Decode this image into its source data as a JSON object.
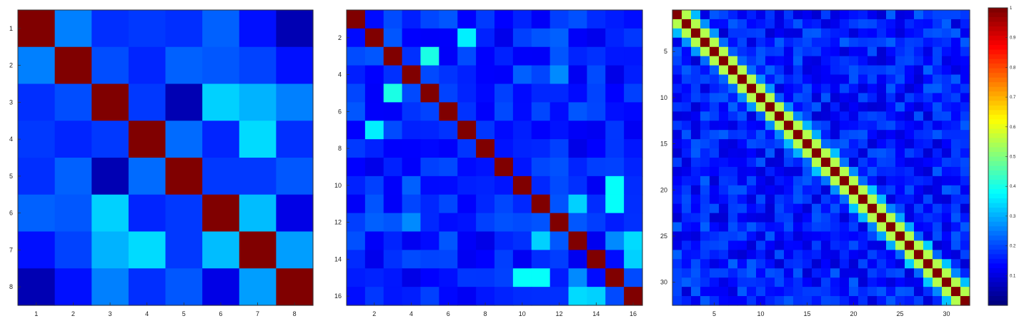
{
  "chart_data": [
    {
      "type": "heatmap",
      "n": 8,
      "x_ticks": [
        1,
        2,
        3,
        4,
        5,
        6,
        7,
        8
      ],
      "y_ticks": [
        1,
        2,
        3,
        4,
        5,
        6,
        7,
        8
      ],
      "values": [
        [
          1.0,
          0.25,
          0.17,
          0.18,
          0.17,
          0.22,
          0.14,
          0.05
        ],
        [
          0.25,
          1.0,
          0.2,
          0.16,
          0.22,
          0.21,
          0.19,
          0.14
        ],
        [
          0.17,
          0.2,
          1.0,
          0.18,
          0.05,
          0.33,
          0.3,
          0.25
        ],
        [
          0.18,
          0.16,
          0.18,
          1.0,
          0.23,
          0.16,
          0.34,
          0.17
        ],
        [
          0.17,
          0.22,
          0.05,
          0.23,
          1.0,
          0.18,
          0.18,
          0.21
        ],
        [
          0.22,
          0.21,
          0.33,
          0.16,
          0.18,
          1.0,
          0.31,
          0.1
        ],
        [
          0.14,
          0.19,
          0.3,
          0.34,
          0.18,
          0.31,
          1.0,
          0.28
        ],
        [
          0.05,
          0.14,
          0.25,
          0.17,
          0.21,
          0.1,
          0.28,
          1.0
        ]
      ]
    },
    {
      "type": "heatmap",
      "n": 16,
      "x_ticks": [
        2,
        4,
        6,
        8,
        10,
        12,
        14,
        16
      ],
      "y_ticks": [
        2,
        4,
        6,
        8,
        10,
        12,
        14,
        16
      ],
      "diagonal": 1.0,
      "base_range": [
        0.1,
        0.22
      ],
      "highlights": [
        {
          "r": 2,
          "c": 7,
          "v": 0.35
        },
        {
          "r": 3,
          "c": 5,
          "v": 0.38
        },
        {
          "r": 5,
          "c": 3,
          "v": 0.4
        },
        {
          "r": 7,
          "c": 2,
          "v": 0.36
        },
        {
          "r": 4,
          "c": 12,
          "v": 0.25
        },
        {
          "r": 11,
          "c": 13,
          "v": 0.33
        },
        {
          "r": 13,
          "c": 11,
          "v": 0.33
        },
        {
          "r": 10,
          "c": 15,
          "v": 0.38
        },
        {
          "r": 11,
          "c": 15,
          "v": 0.4
        },
        {
          "r": 13,
          "c": 16,
          "v": 0.34
        },
        {
          "r": 14,
          "c": 16,
          "v": 0.36
        },
        {
          "r": 15,
          "c": 10,
          "v": 0.38
        },
        {
          "r": 15,
          "c": 11,
          "v": 0.38
        },
        {
          "r": 16,
          "c": 13,
          "v": 0.34
        },
        {
          "r": 16,
          "c": 14,
          "v": 0.33
        },
        {
          "r": 12,
          "c": 4,
          "v": 0.26
        },
        {
          "r": 15,
          "c": 13,
          "v": 0.26
        }
      ]
    },
    {
      "type": "heatmap",
      "n": 32,
      "x_ticks": [
        5,
        10,
        15,
        20,
        25,
        30
      ],
      "y_ticks": [
        5,
        10,
        15,
        20,
        25,
        30
      ],
      "diagonal": 1.0,
      "off_diagonal_1": 0.55,
      "off_diagonal_2": 0.3,
      "base_range": [
        0.08,
        0.22
      ]
    }
  ],
  "colorbar": {
    "range": [
      0,
      1
    ],
    "ticks": [
      "1",
      "0.9",
      "0.8",
      "0.7",
      "0.6",
      "0.5",
      "0.4",
      "0.3",
      "0.2",
      "0.1"
    ]
  }
}
